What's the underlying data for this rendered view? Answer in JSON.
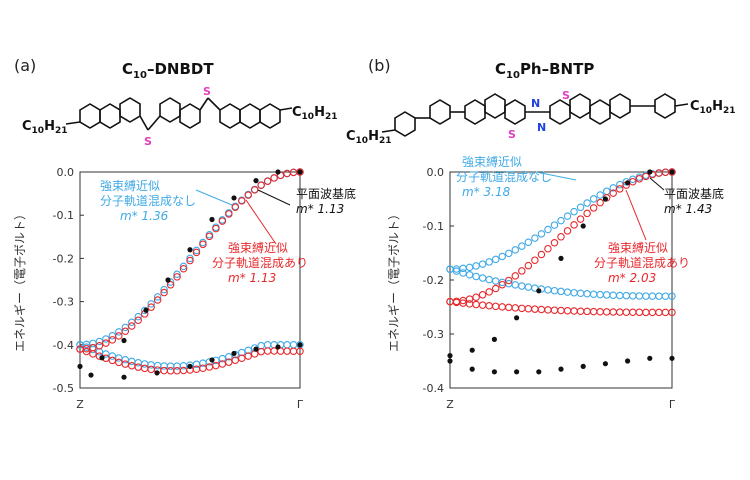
{
  "panels": [
    {
      "label": "(a)",
      "molecule": {
        "title_main": "C",
        "title_sub": "10",
        "title_rest": "–DNBDT",
        "left_sub_main": "C",
        "left_sub_num": "10",
        "left_sub_h": "H",
        "left_sub_hnum": "21",
        "right_sub_main": "C",
        "right_sub_num": "10",
        "right_sub_h": "H",
        "right_sub_hnum": "21",
        "heteroatoms": [
          "S",
          "S"
        ]
      },
      "chart_data": {
        "type": "scatter",
        "ylabel": "エネルギー（電子ボルト）",
        "x_ticks": [
          "Z",
          "Γ"
        ],
        "ylim": [
          -0.5,
          0.0
        ],
        "y_ticks": [
          "0.0",
          "-0.1",
          "-0.2",
          "-0.3",
          "-0.4",
          "-0.5"
        ],
        "y_tick_values": [
          0.0,
          -0.1,
          -0.2,
          -0.3,
          -0.4,
          -0.5
        ],
        "series": [
          {
            "name": "強束縛近似 分子軌道混成なし",
            "color": "#3fa9e6",
            "upper": {
              "start": -0.4,
              "end": 0.0
            },
            "lower": {
              "start": -0.4,
              "min": -0.455,
              "end": -0.4
            }
          },
          {
            "name": "強束縛近似 分子軌道混成あり",
            "color": "#e8282c",
            "upper": {
              "start": -0.41,
              "end": 0.0
            },
            "lower": {
              "start": -0.41,
              "min": -0.465,
              "end": -0.415
            }
          },
          {
            "name": "平面波基底",
            "color": "#111111",
            "upper": [
              [
                0.0,
                -0.45
              ],
              [
                0.1,
                -0.43
              ],
              [
                0.2,
                -0.39
              ],
              [
                0.3,
                -0.32
              ],
              [
                0.4,
                -0.25
              ],
              [
                0.5,
                -0.18
              ],
              [
                0.6,
                -0.11
              ],
              [
                0.7,
                -0.06
              ],
              [
                0.8,
                -0.02
              ],
              [
                0.9,
                0.0
              ],
              [
                1.0,
                0.0
              ]
            ],
            "lower": [
              [
                0.05,
                -0.47
              ],
              [
                0.2,
                -0.475
              ],
              [
                0.35,
                -0.465
              ],
              [
                0.5,
                -0.45
              ],
              [
                0.6,
                -0.435
              ],
              [
                0.7,
                -0.42
              ],
              [
                0.8,
                -0.41
              ],
              [
                0.9,
                -0.405
              ],
              [
                1.0,
                -0.4
              ]
            ]
          }
        ],
        "annotations": [
          {
            "line1": "強束縛近似",
            "line2": "分子軌道混成なし",
            "mass": "m* 1.36",
            "color": "#3fa9e6"
          },
          {
            "line1": "平面波基底",
            "line2": "",
            "mass": "m* 1.13",
            "color": "#111111"
          },
          {
            "line1": "強束縛近似",
            "line2": "分子軌道混成あり",
            "mass": "m* 1.13",
            "color": "#e8282c"
          }
        ]
      }
    },
    {
      "label": "(b)",
      "molecule": {
        "title_main": "C",
        "title_sub": "10",
        "title_rest": "Ph–BNTP",
        "left_sub_main": "C",
        "left_sub_num": "10",
        "left_sub_h": "H",
        "left_sub_hnum": "21",
        "right_sub_main": "C",
        "right_sub_num": "10",
        "right_sub_h": "H",
        "right_sub_hnum": "21",
        "heteroatoms": [
          "S",
          "S",
          "N",
          "N"
        ]
      },
      "chart_data": {
        "type": "scatter",
        "ylabel": "エネルギー（電子ボルト）",
        "x_ticks": [
          "Z",
          "Γ"
        ],
        "ylim": [
          -0.4,
          0.0
        ],
        "y_ticks": [
          "0.0",
          "-0.1",
          "-0.2",
          "-0.3",
          "-0.4"
        ],
        "y_tick_values": [
          0.0,
          -0.1,
          -0.2,
          -0.3,
          -0.4
        ],
        "series": [
          {
            "name": "強束縛近似 分子軌道混成なし",
            "color": "#3fa9e6",
            "upper": {
              "start": -0.18,
              "end": 0.0
            },
            "lower": {
              "start": -0.18,
              "end": -0.23
            }
          },
          {
            "name": "強束縛近似 分子軌道混成あり",
            "color": "#e8282c",
            "upper": {
              "start": -0.24,
              "end": 0.0
            },
            "lower": {
              "start": -0.24,
              "end": -0.26
            }
          },
          {
            "name": "平面波基底",
            "color": "#111111",
            "upper": [
              [
                0.0,
                -0.34
              ],
              [
                0.1,
                -0.33
              ],
              [
                0.2,
                -0.31
              ],
              [
                0.3,
                -0.27
              ],
              [
                0.4,
                -0.22
              ],
              [
                0.5,
                -0.16
              ],
              [
                0.6,
                -0.1
              ],
              [
                0.7,
                -0.05
              ],
              [
                0.8,
                -0.02
              ],
              [
                0.9,
                0.0
              ],
              [
                1.0,
                0.0
              ]
            ],
            "lower": [
              [
                0.0,
                -0.35
              ],
              [
                0.1,
                -0.365
              ],
              [
                0.2,
                -0.37
              ],
              [
                0.3,
                -0.37
              ],
              [
                0.4,
                -0.37
              ],
              [
                0.5,
                -0.365
              ],
              [
                0.6,
                -0.36
              ],
              [
                0.7,
                -0.355
              ],
              [
                0.8,
                -0.35
              ],
              [
                0.9,
                -0.345
              ],
              [
                1.0,
                -0.345
              ]
            ]
          }
        ],
        "annotations": [
          {
            "line1": "強束縛近似",
            "line2": "分子軌道混成なし",
            "mass": "m* 3.18",
            "color": "#3fa9e6"
          },
          {
            "line1": "平面波基底",
            "line2": "",
            "mass": "m* 1.43",
            "color": "#111111"
          },
          {
            "line1": "強束縛近似",
            "line2": "分子軌道混成あり",
            "mass": "m* 2.03",
            "color": "#e8282c"
          }
        ]
      }
    }
  ]
}
